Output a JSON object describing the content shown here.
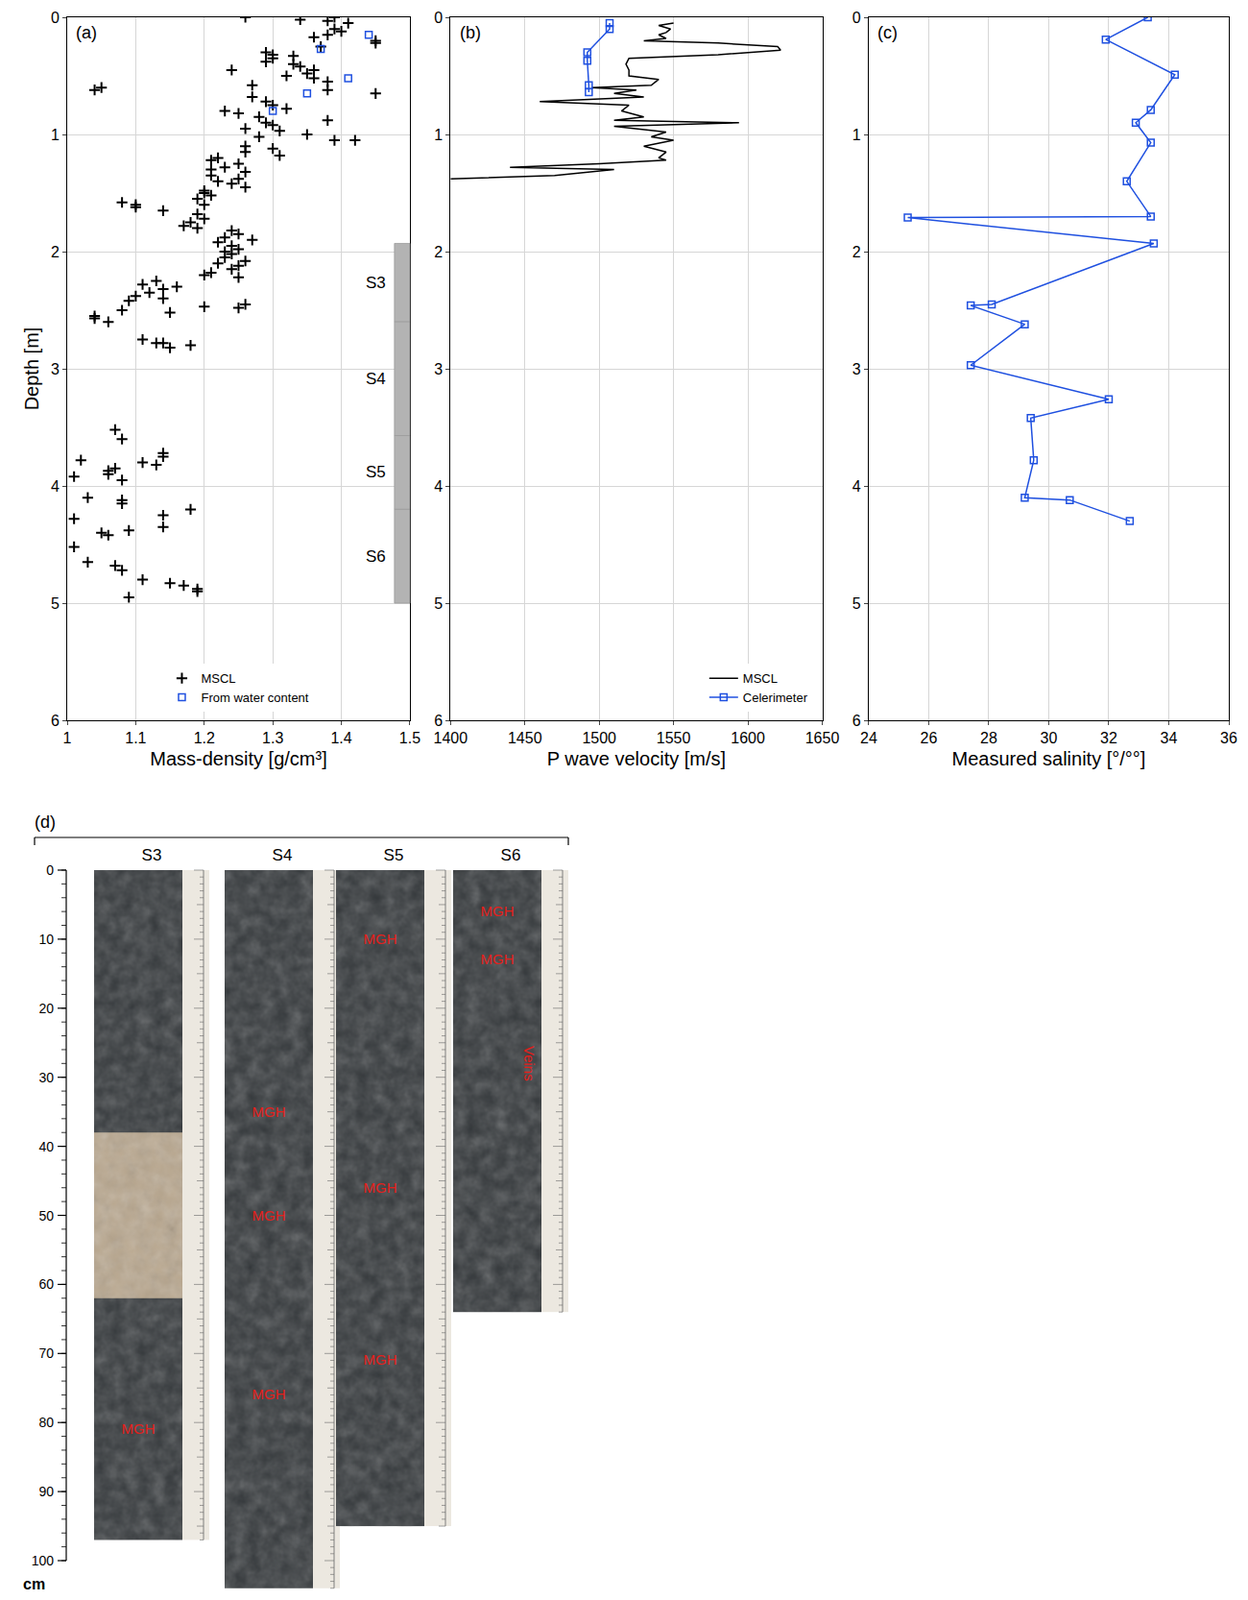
{
  "chart_data": [
    {
      "type": "scatter",
      "panel_label": "(a)",
      "x_label": "Mass-density [g/cm³]",
      "y_label": "Depth [m]",
      "xlim": [
        1,
        1.5
      ],
      "xticks": [
        1,
        1.1,
        1.2,
        1.3,
        1.4,
        1.5
      ],
      "ylim": [
        6,
        0
      ],
      "yticks": [
        0,
        1,
        2,
        3,
        4,
        5,
        6
      ],
      "grid": true,
      "legend": "lower center",
      "series": [
        {
          "name": "MSCL",
          "color": "#000000",
          "marker": "cross",
          "y": [
            0.0,
            0.02,
            0.0,
            0.03,
            0.05,
            0.1,
            0.12,
            0.17,
            0.2,
            0.22,
            0.15,
            0.25,
            0.3,
            0.32,
            0.35,
            0.38,
            0.33,
            0.4,
            0.42,
            0.45,
            0.45,
            0.48,
            0.5,
            0.52,
            0.55,
            0.58,
            0.6,
            0.62,
            0.62,
            0.65,
            0.68,
            0.72,
            0.75,
            0.78,
            0.8,
            0.82,
            0.85,
            0.88,
            0.9,
            0.92,
            0.95,
            0.97,
            1.0,
            1.02,
            1.05,
            1.05,
            1.1,
            1.12,
            1.15,
            1.18,
            1.2,
            1.22,
            1.25,
            1.28,
            1.3,
            1.32,
            1.35,
            1.38,
            1.4,
            1.42,
            1.45,
            1.48,
            1.5,
            1.52,
            1.55,
            1.58,
            1.6,
            1.62,
            1.6,
            1.65,
            1.68,
            1.72,
            1.75,
            1.78,
            1.8,
            1.82,
            1.85,
            1.88,
            1.9,
            1.92,
            1.95,
            1.98,
            2.0,
            2.02,
            2.05,
            2.08,
            2.1,
            2.12,
            2.15,
            2.18,
            2.2,
            2.22,
            2.25,
            2.28,
            2.3,
            2.32,
            2.35,
            2.38,
            2.4,
            2.42,
            2.45,
            2.47,
            2.48,
            2.5,
            2.52,
            2.55,
            2.57,
            2.6,
            2.75,
            2.78,
            2.8,
            2.82,
            2.78,
            3.52,
            3.6,
            3.72,
            3.75,
            3.78,
            3.8,
            3.82,
            3.85,
            3.87,
            3.9,
            3.92,
            3.95,
            4.1,
            4.12,
            4.15,
            4.2,
            4.25,
            4.28,
            4.35,
            4.38,
            4.4,
            4.42,
            4.52,
            4.65,
            4.68,
            4.72,
            4.8,
            4.83,
            4.85,
            4.88,
            4.9,
            4.95
          ],
          "x": [
            1.26,
            1.34,
            1.39,
            1.38,
            1.41,
            1.39,
            1.4,
            1.36,
            1.45,
            1.45,
            1.38,
            1.37,
            1.29,
            1.3,
            1.3,
            1.29,
            1.33,
            1.33,
            1.34,
            1.24,
            1.36,
            1.35,
            1.32,
            1.36,
            1.38,
            1.27,
            1.05,
            1.04,
            1.38,
            1.45,
            1.27,
            1.29,
            1.3,
            1.32,
            1.23,
            1.25,
            1.28,
            1.38,
            1.29,
            1.3,
            1.26,
            1.31,
            1.35,
            1.28,
            1.39,
            1.42,
            1.26,
            1.3,
            1.26,
            1.31,
            1.22,
            1.21,
            1.25,
            1.23,
            1.21,
            1.26,
            1.21,
            1.25,
            1.22,
            1.24,
            1.26,
            1.2,
            1.2,
            1.21,
            1.19,
            1.08,
            1.1,
            1.1,
            1.2,
            1.14,
            1.19,
            1.2,
            1.18,
            1.17,
            1.19,
            1.24,
            1.25,
            1.23,
            1.27,
            1.22,
            1.24,
            1.25,
            1.23,
            1.24,
            1.23,
            1.26,
            1.22,
            1.25,
            1.24,
            1.21,
            1.2,
            1.25,
            1.13,
            1.11,
            1.16,
            1.14,
            1.12,
            1.1,
            1.14,
            1.09,
            1.26,
            1.2,
            1.25,
            1.08,
            1.15,
            1.04,
            1.04,
            1.06,
            1.11,
            1.14,
            1.18,
            1.15,
            1.13,
            1.07,
            1.08,
            1.14,
            1.14,
            1.02,
            1.11,
            1.13,
            1.07,
            1.06,
            1.06,
            1.01,
            1.08,
            1.03,
            1.08,
            1.08,
            1.18,
            1.14,
            1.01,
            1.14,
            1.09,
            1.05,
            1.06,
            1.01,
            1.03,
            1.07,
            1.08,
            1.11,
            1.15,
            1.17,
            1.19,
            1.19,
            1.09
          ]
        },
        {
          "name": "From water content",
          "color": "#1f50e0",
          "marker": "square-open",
          "y": [
            0.15,
            0.27,
            0.52,
            0.65,
            0.8
          ],
          "x": [
            1.44,
            1.37,
            1.41,
            1.35,
            1.3
          ]
        }
      ],
      "sections": [
        {
          "label": "S3",
          "top": 1.93,
          "bottom": 2.6
        },
        {
          "label": "S4",
          "top": 2.6,
          "bottom": 3.57
        },
        {
          "label": "S5",
          "top": 3.57,
          "bottom": 4.2
        },
        {
          "label": "S6",
          "top": 4.2,
          "bottom": 5.0
        }
      ]
    },
    {
      "type": "line",
      "panel_label": "(b)",
      "x_label": "P wave velocity [m/s]",
      "xlim": [
        1400,
        1650
      ],
      "xticks": [
        1400,
        1450,
        1500,
        1550,
        1600,
        1650
      ],
      "ylim": [
        6,
        0
      ],
      "yticks": [
        0,
        1,
        2,
        3,
        4,
        5,
        6
      ],
      "grid": true,
      "legend": "lower right",
      "series": [
        {
          "name": "MSCL",
          "color": "#000000",
          "line_style": "solid",
          "y": [
            0.05,
            0.07,
            0.1,
            0.13,
            0.15,
            0.18,
            0.2,
            0.22,
            0.25,
            0.28,
            0.32,
            0.35,
            0.4,
            0.45,
            0.5,
            0.53,
            0.58,
            0.6,
            0.62,
            0.65,
            0.68,
            0.72,
            0.75,
            0.8,
            0.85,
            0.88,
            0.9,
            0.93,
            0.98,
            1.02,
            1.05,
            1.1,
            1.15,
            1.2,
            1.22,
            1.25,
            1.28,
            1.3,
            1.35,
            1.38
          ],
          "x": [
            1550,
            1540,
            1548,
            1545,
            1540,
            1545,
            1530,
            1580,
            1620,
            1622,
            1580,
            1520,
            1518,
            1520,
            1520,
            1540,
            1535,
            1495,
            1525,
            1510,
            1530,
            1460,
            1520,
            1515,
            1530,
            1510,
            1594,
            1510,
            1545,
            1535,
            1550,
            1530,
            1545,
            1540,
            1545,
            1500,
            1440,
            1510,
            1470,
            1400
          ]
        },
        {
          "name": "Celerimeter",
          "color": "#1f50e0",
          "marker": "square-open",
          "line_style": "solid",
          "y": [
            0.05,
            0.1,
            0.3,
            0.37,
            0.58,
            0.64
          ],
          "x": [
            1507,
            1507,
            1492,
            1492,
            1493,
            1493
          ]
        }
      ]
    },
    {
      "type": "line",
      "panel_label": "(c)",
      "x_label": "Measured salinity [°/°°]",
      "xlim": [
        24,
        36
      ],
      "xticks": [
        24,
        26,
        28,
        30,
        32,
        34,
        36
      ],
      "ylim": [
        6,
        0
      ],
      "yticks": [
        0,
        1,
        2,
        3,
        4,
        5,
        6
      ],
      "grid": true,
      "series": [
        {
          "color": "#1f50e0",
          "marker": "square-open",
          "line_style": "solid",
          "y": [
            0.0,
            0.19,
            0.49,
            0.79,
            0.9,
            1.07,
            1.4,
            1.7,
            1.71,
            1.93,
            2.45,
            2.46,
            2.62,
            2.97,
            3.26,
            3.42,
            3.78,
            4.1,
            4.12,
            4.3
          ],
          "x": [
            33.3,
            31.9,
            34.2,
            33.4,
            32.9,
            33.4,
            32.6,
            33.4,
            25.3,
            33.5,
            28.1,
            27.4,
            29.2,
            27.4,
            32.0,
            29.4,
            29.5,
            29.2,
            30.7,
            32.7
          ]
        }
      ]
    }
  ],
  "panel_d": {
    "panel_label": "(d)",
    "unit": "cm",
    "ruler_ticks": [
      0,
      10,
      20,
      30,
      40,
      50,
      60,
      70,
      80,
      90,
      100
    ],
    "cores": [
      {
        "name": "S3",
        "length": 97,
        "pale_interval": [
          38,
          62
        ],
        "labels": [
          {
            "text": "MGH",
            "depth": 81
          }
        ]
      },
      {
        "name": "S4",
        "length": 104,
        "labels": [
          {
            "text": "MGH",
            "depth": 35
          },
          {
            "text": "MGH",
            "depth": 50
          },
          {
            "text": "MGH",
            "depth": 76
          }
        ]
      },
      {
        "name": "S5",
        "length": 95,
        "labels": [
          {
            "text": "MGH",
            "depth": 10
          },
          {
            "text": "MGH",
            "depth": 46
          },
          {
            "text": "MGH",
            "depth": 71
          }
        ]
      },
      {
        "name": "S6",
        "length": 64,
        "labels": [
          {
            "text": "MGH",
            "depth": 6
          },
          {
            "text": "MGH",
            "depth": 13
          },
          {
            "text": "Veins",
            "depth": 28,
            "orientation": "vertical"
          }
        ]
      }
    ]
  }
}
